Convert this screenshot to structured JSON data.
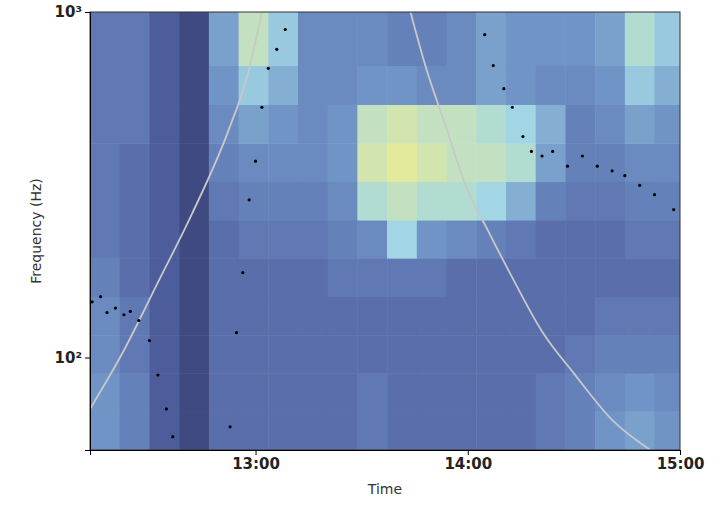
{
  "chart_data": {
    "type": "heatmap",
    "x_label": "Time",
    "y_label": "Frequency (Hz)",
    "log": "y",
    "grid": false,
    "xlim": [
      12.22,
      15.0
    ],
    "ylim": [
      54,
      1000
    ],
    "xticks": [
      {
        "value": 13,
        "label": "13:00"
      },
      {
        "value": 14,
        "label": "14:00"
      },
      {
        "value": 15,
        "label": "15:00"
      }
    ],
    "yticks": [
      {
        "value": 100,
        "label": "10²"
      },
      {
        "value": 1000,
        "label": "10³"
      }
    ],
    "color_range": [
      0,
      1
    ],
    "x_bins": [
      12.22,
      12.36,
      12.5,
      12.64,
      12.78,
      12.92,
      13.06,
      13.2,
      13.34,
      13.48,
      13.62,
      13.76,
      13.9,
      14.04,
      14.18,
      14.32,
      14.46,
      14.6,
      14.74,
      14.88,
      15.0
    ],
    "y_bins": [
      54,
      70,
      90,
      116,
      150,
      194,
      250,
      323,
      417,
      540,
      700,
      1000
    ],
    "cells": [
      [
        0.5,
        0.4,
        0.2,
        0.1,
        0.3,
        0.3,
        0.3,
        0.3,
        0.3,
        0.35,
        0.3,
        0.3,
        0.3,
        0.3,
        0.3,
        0.35,
        0.4,
        0.5,
        0.55,
        0.5
      ],
      [
        0.5,
        0.4,
        0.2,
        0.1,
        0.3,
        0.3,
        0.3,
        0.3,
        0.3,
        0.35,
        0.3,
        0.3,
        0.3,
        0.3,
        0.3,
        0.35,
        0.4,
        0.45,
        0.5,
        0.45
      ],
      [
        0.45,
        0.35,
        0.2,
        0.1,
        0.3,
        0.3,
        0.3,
        0.3,
        0.3,
        0.3,
        0.3,
        0.3,
        0.3,
        0.3,
        0.3,
        0.3,
        0.35,
        0.4,
        0.4,
        0.4
      ],
      [
        0.45,
        0.35,
        0.2,
        0.1,
        0.3,
        0.3,
        0.3,
        0.3,
        0.3,
        0.3,
        0.3,
        0.3,
        0.3,
        0.3,
        0.3,
        0.3,
        0.3,
        0.35,
        0.35,
        0.35
      ],
      [
        0.4,
        0.3,
        0.2,
        0.1,
        0.3,
        0.3,
        0.3,
        0.3,
        0.35,
        0.35,
        0.35,
        0.35,
        0.3,
        0.3,
        0.3,
        0.3,
        0.3,
        0.3,
        0.3,
        0.3
      ],
      [
        0.35,
        0.3,
        0.2,
        0.1,
        0.3,
        0.35,
        0.35,
        0.35,
        0.4,
        0.45,
        0.75,
        0.5,
        0.45,
        0.4,
        0.35,
        0.3,
        0.3,
        0.3,
        0.35,
        0.35
      ],
      [
        0.35,
        0.3,
        0.2,
        0.1,
        0.35,
        0.4,
        0.4,
        0.4,
        0.45,
        0.8,
        0.85,
        0.8,
        0.8,
        0.75,
        0.6,
        0.4,
        0.35,
        0.35,
        0.4,
        0.4
      ],
      [
        0.35,
        0.3,
        0.2,
        0.1,
        0.4,
        0.45,
        0.45,
        0.45,
        0.5,
        0.9,
        0.95,
        0.9,
        0.85,
        0.85,
        0.8,
        0.55,
        0.4,
        0.4,
        0.45,
        0.45
      ],
      [
        0.35,
        0.35,
        0.2,
        0.1,
        0.45,
        0.55,
        0.5,
        0.45,
        0.5,
        0.85,
        0.9,
        0.85,
        0.85,
        0.8,
        0.75,
        0.6,
        0.4,
        0.45,
        0.55,
        0.5
      ],
      [
        0.35,
        0.35,
        0.2,
        0.1,
        0.5,
        0.7,
        0.6,
        0.45,
        0.45,
        0.5,
        0.5,
        0.45,
        0.45,
        0.55,
        0.5,
        0.45,
        0.45,
        0.5,
        0.7,
        0.6
      ],
      [
        0.35,
        0.35,
        0.2,
        0.1,
        0.55,
        0.85,
        0.7,
        0.45,
        0.45,
        0.45,
        0.4,
        0.4,
        0.45,
        0.55,
        0.5,
        0.5,
        0.5,
        0.55,
        0.8,
        0.7
      ]
    ],
    "series": [
      {
        "type": "line",
        "color": "#c8c8c8",
        "x": [
          12.22,
          12.38,
          12.54,
          12.7,
          12.87,
          12.96,
          13.03
        ],
        "values": [
          71,
          105,
          165,
          260,
          450,
          650,
          1000
        ]
      },
      {
        "type": "line",
        "color": "#c8c8c8",
        "x": [
          13.73,
          13.8,
          13.9,
          13.99,
          14.1,
          14.2,
          14.35,
          14.5,
          14.68,
          14.86
        ],
        "values": [
          1000,
          700,
          460,
          315,
          230,
          175,
          119,
          90,
          66,
          54
        ]
      },
      {
        "type": "scatter",
        "color": "#000000",
        "marker": "circle",
        "x": [
          12.23,
          12.27,
          12.3,
          12.34,
          12.38,
          12.41,
          12.45,
          12.5,
          12.54,
          12.58,
          12.61,
          12.88,
          12.91,
          12.94,
          12.97,
          13.0,
          13.03,
          13.06,
          13.1,
          13.14,
          14.08,
          14.12,
          14.17,
          14.21,
          14.26,
          14.3,
          14.35,
          14.4,
          14.47,
          14.54,
          14.61,
          14.68,
          14.74,
          14.81,
          14.88,
          14.97
        ],
        "values": [
          145,
          150,
          135,
          139,
          133,
          136,
          128,
          112,
          89,
          71,
          59,
          63,
          118,
          176,
          286,
          370,
          530,
          687,
          780,
          890,
          860,
          700,
          600,
          530,
          436,
          395,
          383,
          395,
          358,
          383,
          358,
          347,
          336,
          315,
          296,
          268
        ]
      }
    ]
  }
}
